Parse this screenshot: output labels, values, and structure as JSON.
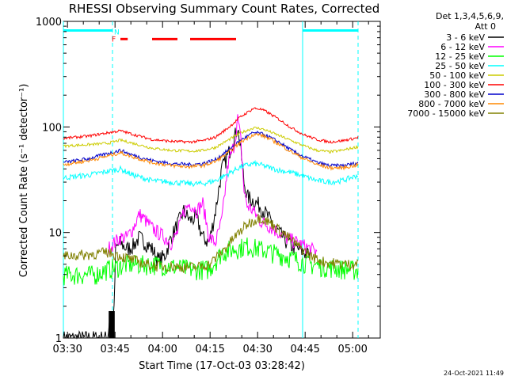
{
  "chart_data": {
    "type": "line",
    "title": "RHESSI Observing Summary Count Rates, Corrected",
    "xlabel": "Start Time (17-Oct-03 03:28:42)",
    "ylabel": "Corrected Count Rate (s⁻¹ detector⁻¹)",
    "x_unit": "minutes after 03:28:42",
    "xlim": [
      0,
      100
    ],
    "ylim": [
      1,
      1000
    ],
    "yscale": "log",
    "x_ticks": [
      {
        "label": "03:30",
        "x": 1.3
      },
      {
        "label": "03:45",
        "x": 16.3
      },
      {
        "label": "04:00",
        "x": 31.3
      },
      {
        "label": "04:15",
        "x": 46.3
      },
      {
        "label": "04:30",
        "x": 61.3
      },
      {
        "label": "04:45",
        "x": 76.3
      },
      {
        "label": "05:00",
        "x": 91.3
      }
    ],
    "y_ticks": [
      {
        "label": "1",
        "y": 1
      },
      {
        "label": "10",
        "y": 10
      },
      {
        "label": "100",
        "y": 100
      },
      {
        "label": "1000",
        "y": 1000
      }
    ],
    "legend_header": [
      "Det 1,3,4,5,6,9,",
      "Att 0"
    ],
    "series": [
      {
        "name": "3 - 6 keV",
        "color": "#000000",
        "x": [
          0,
          14,
          14.5,
          16,
          16.5,
          18,
          20,
          22,
          24,
          26,
          28,
          30,
          32,
          34,
          36,
          38,
          40,
          42,
          44,
          46,
          48,
          50,
          52,
          54,
          55,
          56,
          57,
          58,
          60,
          62,
          64,
          66,
          68,
          70,
          72,
          74,
          76,
          78
        ],
        "y": [
          1,
          1,
          1.5,
          1.8,
          7,
          8,
          7,
          7.5,
          9,
          8,
          7,
          5.5,
          6,
          9,
          12,
          16,
          13,
          14,
          9,
          8,
          16,
          40,
          55,
          80,
          100,
          60,
          30,
          22,
          20,
          18,
          15,
          12,
          10,
          8.5,
          7.5,
          7,
          6.5,
          6
        ]
      },
      {
        "name": "6 - 12 keV",
        "color": "#ff00ff",
        "x": [
          14,
          16,
          18,
          20,
          22,
          24,
          26,
          28,
          30,
          32,
          34,
          36,
          38,
          40,
          42,
          44,
          46,
          48,
          50,
          52,
          54,
          55,
          56,
          57,
          58,
          60,
          62,
          64,
          66,
          68,
          70,
          72,
          74,
          76,
          78,
          80
        ],
        "y": [
          7,
          8,
          9,
          9,
          11,
          15,
          13,
          11,
          10,
          9,
          8,
          10,
          16,
          19,
          16,
          19,
          9,
          8,
          13,
          45,
          70,
          120,
          75,
          25,
          18,
          16,
          13,
          12,
          11,
          10,
          9,
          8.5,
          8,
          7.5,
          7,
          6.5
        ]
      },
      {
        "name": "12 - 25 keV",
        "color": "#00ff00",
        "x": [
          0,
          10,
          14,
          20,
          30,
          40,
          46,
          50,
          54,
          58,
          62,
          66,
          70,
          74,
          78,
          82,
          86,
          90,
          93
        ],
        "y": [
          4,
          4,
          4.5,
          5,
          5,
          4.5,
          4.5,
          6.5,
          7,
          7.5,
          7,
          6.5,
          6,
          5.5,
          5,
          4.8,
          4.6,
          4.5,
          4.4
        ]
      },
      {
        "name": "25 - 50 keV",
        "color": "#00ffff",
        "x": [
          0,
          8,
          14,
          18,
          22,
          28,
          34,
          40,
          44,
          48,
          52,
          56,
          60,
          62,
          64,
          68,
          72,
          76,
          80,
          84,
          88,
          92,
          93
        ],
        "y": [
          33,
          35,
          38,
          40,
          35,
          31,
          30,
          29,
          29,
          31,
          36,
          42,
          45,
          44,
          42,
          39,
          37,
          34,
          31,
          30,
          31,
          34,
          35
        ]
      },
      {
        "name": "50 - 100 keV",
        "color": "#cccc00",
        "x": [
          0,
          8,
          14,
          18,
          22,
          28,
          34,
          40,
          44,
          48,
          52,
          56,
          60,
          62,
          64,
          68,
          72,
          76,
          80,
          84,
          88,
          92,
          93
        ],
        "y": [
          66,
          68,
          70,
          75,
          70,
          63,
          60,
          59,
          60,
          64,
          75,
          88,
          98,
          97,
          93,
          83,
          74,
          66,
          60,
          58,
          60,
          64,
          65
        ]
      },
      {
        "name": "100 - 300 keV",
        "color": "#ff0000",
        "x": [
          0,
          8,
          14,
          18,
          22,
          28,
          34,
          40,
          44,
          48,
          52,
          56,
          60,
          62,
          64,
          68,
          72,
          76,
          80,
          84,
          88,
          92,
          93
        ],
        "y": [
          78,
          82,
          88,
          92,
          85,
          76,
          73,
          72,
          74,
          80,
          98,
          125,
          150,
          148,
          140,
          118,
          98,
          84,
          76,
          72,
          74,
          78,
          80
        ]
      },
      {
        "name": "300 - 800 keV",
        "color": "#0000cc",
        "x": [
          0,
          8,
          14,
          18,
          22,
          28,
          34,
          40,
          44,
          48,
          52,
          56,
          60,
          62,
          64,
          68,
          72,
          76,
          80,
          84,
          88,
          92,
          93
        ],
        "y": [
          46,
          50,
          56,
          60,
          54,
          48,
          45,
          44,
          45,
          49,
          60,
          75,
          88,
          87,
          83,
          72,
          60,
          52,
          46,
          43,
          43,
          45,
          46
        ]
      },
      {
        "name": "800 - 7000 keV",
        "color": "#ff8800",
        "x": [
          0,
          8,
          14,
          18,
          22,
          28,
          34,
          40,
          44,
          48,
          52,
          56,
          60,
          62,
          64,
          68,
          72,
          76,
          80,
          84,
          88,
          92,
          93
        ],
        "y": [
          44,
          48,
          53,
          57,
          52,
          46,
          43,
          42,
          43,
          47,
          57,
          72,
          85,
          84,
          80,
          69,
          58,
          50,
          44,
          41,
          41,
          43,
          44
        ]
      },
      {
        "name": "7000 - 15000 keV",
        "color": "#808000",
        "x": [
          0,
          8,
          14,
          18,
          22,
          26,
          30,
          34,
          38,
          42,
          46,
          50,
          54,
          58,
          62,
          66,
          70,
          74,
          78,
          82,
          86,
          90,
          93
        ],
        "y": [
          6,
          6.2,
          6.5,
          6,
          5.5,
          5,
          4.8,
          4.8,
          4.7,
          4.7,
          5,
          6.5,
          9,
          12,
          14,
          12,
          9.5,
          7.5,
          6,
          5.3,
          5.1,
          5,
          5.1
        ]
      }
    ],
    "annotations": {
      "cyan_band_y": 820,
      "cyan_band_segments": [
        [
          0,
          15.5
        ],
        [
          75.5,
          93
        ]
      ],
      "red_band_y": 680,
      "red_band_segments": [
        [
          18,
          20.3
        ],
        [
          28,
          36
        ],
        [
          40,
          54.5
        ]
      ],
      "dashed_lines_x": [
        15.5,
        93
      ],
      "solid_lines_x": [
        0,
        75.5
      ],
      "flag_N": {
        "label": "N",
        "x": 15.5
      },
      "flag_F": {
        "label": "F",
        "x": 15.5
      }
    },
    "timestamp": "24-Oct-2021 11:49"
  }
}
